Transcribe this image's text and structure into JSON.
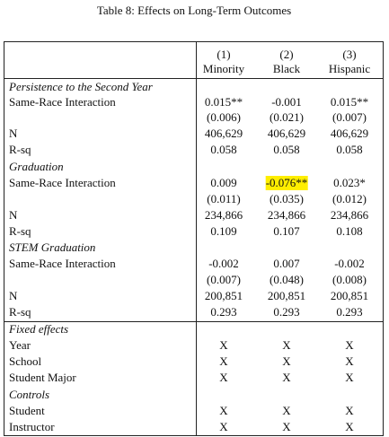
{
  "title": "Table 8: Effects on Long-Term Outcomes",
  "columns": {
    "numbers": [
      "(1)",
      "(2)",
      "(3)"
    ],
    "groups": [
      "Minority",
      "Black",
      "Hispanic"
    ]
  },
  "rows": [
    {
      "section": "Persistence to the Second Year"
    },
    {
      "label": "Same-Race Interaction",
      "cells": [
        "0.015**",
        "-0.001",
        "0.015**"
      ]
    },
    {
      "cells": [
        "(0.006)",
        "(0.021)",
        "(0.007)"
      ]
    },
    {
      "label": "N",
      "cells": [
        "406,629",
        "406,629",
        "406,629"
      ]
    },
    {
      "label": "R-sq",
      "cells": [
        "0.058",
        "0.058",
        "0.058"
      ]
    },
    {
      "section": "Graduation"
    },
    {
      "label": "Same-Race Interaction",
      "cells": [
        "0.009",
        "-0.076**",
        "0.023*"
      ]
    },
    {
      "cells": [
        "(0.011)",
        "(0.035)",
        "(0.012)"
      ]
    },
    {
      "label": "N",
      "cells": [
        "234,866",
        "234,866",
        "234,866"
      ]
    },
    {
      "label": "R-sq",
      "cells": [
        "0.109",
        "0.107",
        "0.108"
      ]
    },
    {
      "section": "STEM Graduation"
    },
    {
      "label": "Same-Race Interaction",
      "cells": [
        "-0.002",
        "0.007",
        "-0.002"
      ]
    },
    {
      "cells": [
        "(0.007)",
        "(0.048)",
        "(0.008)"
      ]
    },
    {
      "label": "N",
      "cells": [
        "200,851",
        "200,851",
        "200,851"
      ]
    },
    {
      "label": "R-sq",
      "cells": [
        "0.293",
        "0.293",
        "0.293"
      ]
    },
    {
      "section": "Fixed effects"
    },
    {
      "label": "Year",
      "cells": [
        "X",
        "X",
        "X"
      ]
    },
    {
      "label": "School",
      "cells": [
        "X",
        "X",
        "X"
      ]
    },
    {
      "label": "Student Major",
      "cells": [
        "X",
        "X",
        "X"
      ]
    },
    {
      "section": "Controls"
    },
    {
      "label": "Student",
      "cells": [
        "X",
        "X",
        "X"
      ]
    },
    {
      "label": "Instructor",
      "cells": [
        "X",
        "X",
        "X"
      ]
    }
  ]
}
